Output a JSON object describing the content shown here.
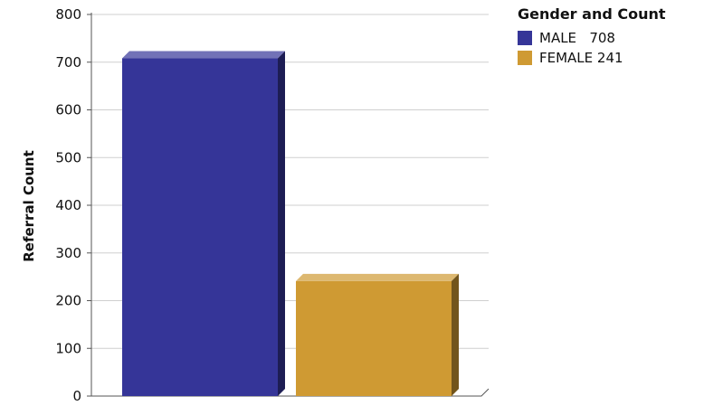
{
  "chart_data": {
    "type": "bar",
    "categories": [
      "MALE",
      "FEMALE"
    ],
    "values": [
      708,
      241
    ],
    "colors": [
      "#353598",
      "#cf9a33"
    ],
    "title": "",
    "xlabel": "",
    "ylabel": "Referral Count",
    "ylim": [
      0,
      800
    ],
    "yticks": [
      "0",
      "100",
      "200",
      "300",
      "400",
      "500",
      "600",
      "700",
      "800"
    ],
    "grid": true,
    "legend_placement": "top-right",
    "legend": {
      "title": "Gender and Count",
      "items": [
        {
          "label": "MALE   708",
          "color": "#353598"
        },
        {
          "label": "FEMALE 241",
          "color": "#cf9a33"
        }
      ]
    }
  }
}
